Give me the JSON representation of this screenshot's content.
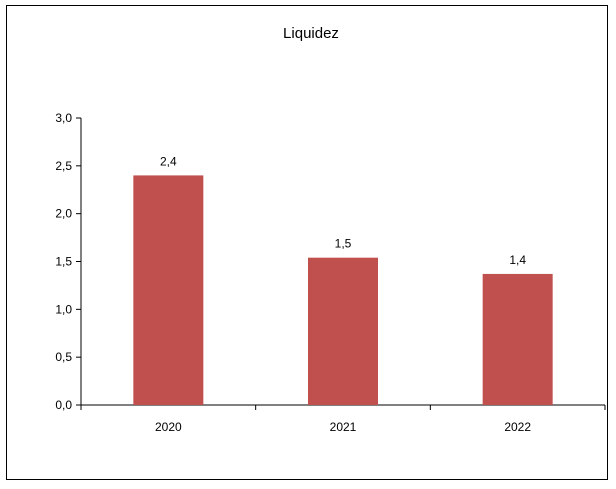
{
  "chart_data": {
    "type": "bar",
    "title": "Liquidez",
    "xlabel": "",
    "ylabel": "",
    "categories": [
      "2020",
      "2021",
      "2022"
    ],
    "values": [
      2.4,
      1.54,
      1.37
    ],
    "data_labels": [
      "2,4",
      "1,5",
      "1,4"
    ],
    "ylim": [
      0,
      3.0
    ],
    "yticks": [
      0,
      0.5,
      1.0,
      1.5,
      2.0,
      2.5,
      3.0
    ],
    "ytick_labels": [
      "0,0",
      "0,5",
      "1,0",
      "1,5",
      "2,0",
      "2,5",
      "3,0"
    ],
    "grid": false,
    "legend": "none",
    "bar_color": "#C0504D"
  }
}
